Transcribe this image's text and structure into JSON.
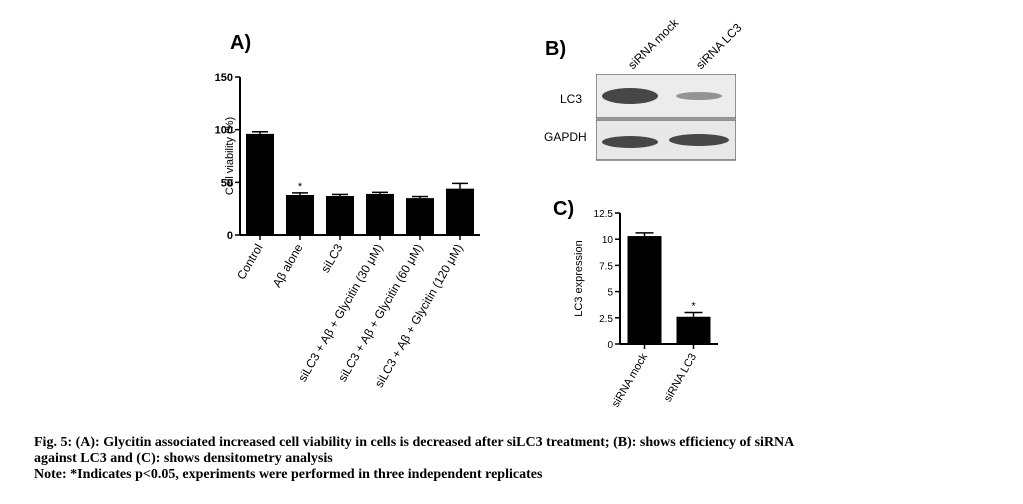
{
  "panels": {
    "a": "A)",
    "b": "B)",
    "c": "C)"
  },
  "blot": {
    "lanes": [
      "siRNA mock",
      "siRNA LC3"
    ],
    "bands": [
      "LC3",
      "GAPDH"
    ]
  },
  "chart_data": [
    {
      "type": "bar",
      "ylabel": "Cell viability (%)",
      "ylim": [
        0,
        150
      ],
      "yticks": [
        0,
        50,
        100,
        150
      ],
      "categories": [
        "Control",
        "Aβ alone",
        "siLC3",
        "siLC3 + Aβ + Glycitin (30 μM)",
        "siLC3 + Aβ + Glycitin (60 μM)",
        "siLC3 + Aβ + Glycitin (120 μM)"
      ],
      "values": [
        96,
        38,
        37,
        39,
        35,
        44
      ],
      "errors": [
        2,
        2,
        1.5,
        1.5,
        1.5,
        5
      ],
      "annotations": [
        "",
        "*",
        "",
        "",
        "",
        ""
      ]
    },
    {
      "type": "bar",
      "ylabel": "LC3 expression",
      "ylim": [
        0,
        12.5
      ],
      "yticks": [
        0,
        2.5,
        5,
        7.5,
        10,
        12.5
      ],
      "categories": [
        "siRNA mock",
        "siRNA LC3"
      ],
      "values": [
        10.3,
        2.6
      ],
      "errors": [
        0.3,
        0.4
      ],
      "annotations": [
        "",
        "*"
      ]
    }
  ],
  "caption": {
    "line1": "Fig. 5: (A): Glycitin associated increased cell viability in cells is decreased after siLC3 treatment; (B): shows efficiency of siRNA",
    "line2": "against LC3 and (C): shows densitometry analysis",
    "line3": "Note: *Indicates p<0.05, experiments were performed in three independent replicates"
  }
}
